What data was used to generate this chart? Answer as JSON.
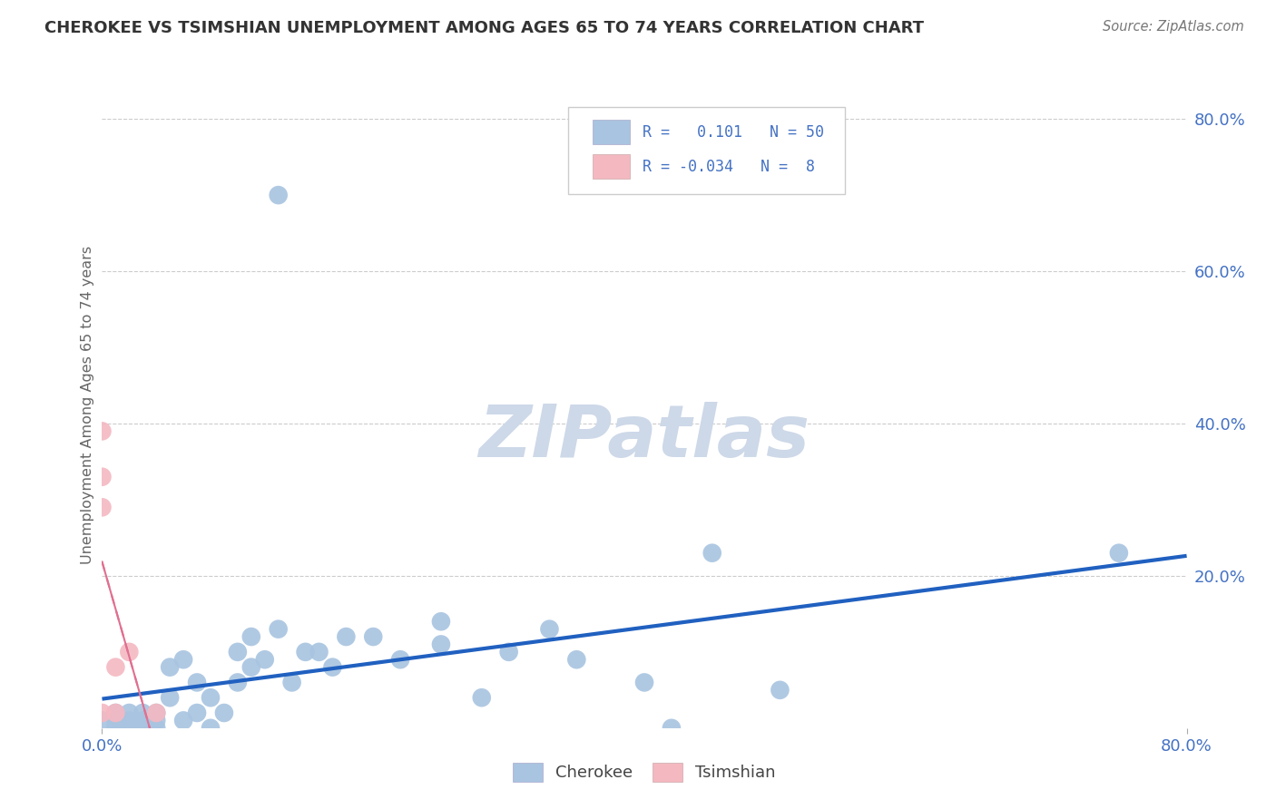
{
  "title": "CHEROKEE VS TSIMSHIAN UNEMPLOYMENT AMONG AGES 65 TO 74 YEARS CORRELATION CHART",
  "source": "Source: ZipAtlas.com",
  "ylabel": "Unemployment Among Ages 65 to 74 years",
  "xlim": [
    0.0,
    0.8
  ],
  "ylim": [
    0.0,
    0.85
  ],
  "xtick_positions": [
    0.0,
    0.8
  ],
  "xticklabels": [
    "0.0%",
    "80.0%"
  ],
  "ytick_positions": [
    0.2,
    0.4,
    0.6,
    0.8
  ],
  "ytick_labels": [
    "20.0%",
    "40.0%",
    "60.0%",
    "80.0%"
  ],
  "cherokee_color": "#a8c4e0",
  "tsimshian_color": "#f4b8c1",
  "cherokee_line_color": "#2060c0",
  "tsimshian_line_color": "#e07090",
  "cherokee_R": 0.101,
  "cherokee_N": 50,
  "tsimshian_R": -0.034,
  "tsimshian_N": 8,
  "cherokee_x": [
    0.0,
    0.01,
    0.01,
    0.01,
    0.01,
    0.01,
    0.02,
    0.02,
    0.02,
    0.02,
    0.03,
    0.03,
    0.03,
    0.04,
    0.04,
    0.04,
    0.05,
    0.05,
    0.06,
    0.06,
    0.07,
    0.07,
    0.08,
    0.08,
    0.09,
    0.1,
    0.1,
    0.11,
    0.11,
    0.12,
    0.13,
    0.14,
    0.15,
    0.16,
    0.17,
    0.18,
    0.2,
    0.22,
    0.25,
    0.25,
    0.28,
    0.3,
    0.33,
    0.35,
    0.4,
    0.42,
    0.45,
    0.5,
    0.75,
    0.13
  ],
  "cherokee_y": [
    0.01,
    0.0,
    0.0,
    0.0,
    0.01,
    0.02,
    0.0,
    0.0,
    0.01,
    0.02,
    0.0,
    0.01,
    0.02,
    0.0,
    0.01,
    0.02,
    0.04,
    0.08,
    0.01,
    0.09,
    0.02,
    0.06,
    0.0,
    0.04,
    0.02,
    0.06,
    0.1,
    0.08,
    0.12,
    0.09,
    0.13,
    0.06,
    0.1,
    0.1,
    0.08,
    0.12,
    0.12,
    0.09,
    0.14,
    0.11,
    0.04,
    0.1,
    0.13,
    0.09,
    0.06,
    0.0,
    0.23,
    0.05,
    0.23,
    0.7
  ],
  "tsimshian_x": [
    0.0,
    0.0,
    0.0,
    0.0,
    0.01,
    0.01,
    0.02,
    0.04
  ],
  "tsimshian_y": [
    0.39,
    0.33,
    0.29,
    0.02,
    0.08,
    0.02,
    0.1,
    0.02
  ],
  "background_color": "#ffffff",
  "grid_color": "#cccccc",
  "watermark_color": "#cdd8e8",
  "legend_color": "#4472c4",
  "title_color": "#333333",
  "source_color": "#777777",
  "ylabel_color": "#666666"
}
